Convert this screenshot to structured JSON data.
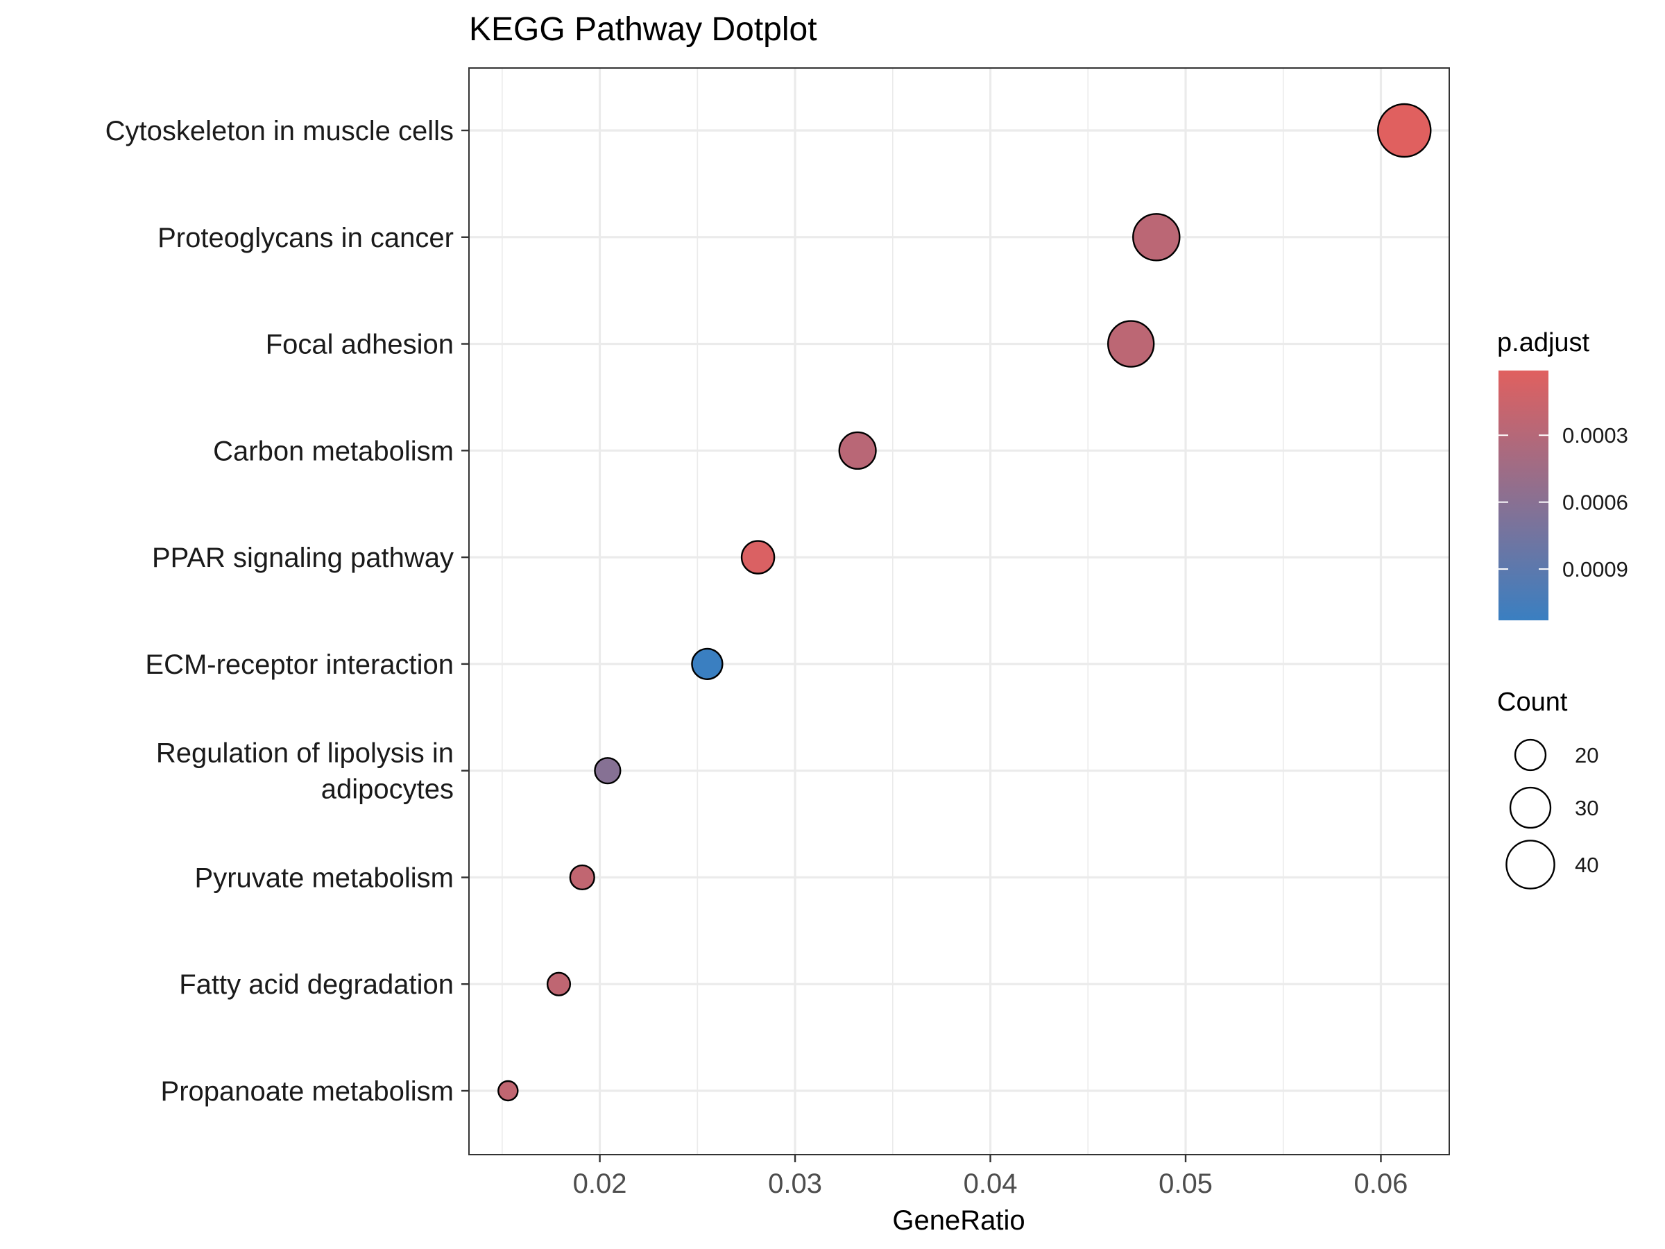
{
  "chart_data": {
    "type": "scatter",
    "title": "KEGG Pathway Dotplot",
    "xlabel": "GeneRatio",
    "ylabel": "",
    "xlim": [
      0.0133,
      0.0635
    ],
    "x_ticks": [
      0.02,
      0.03,
      0.04,
      0.05,
      0.06
    ],
    "x_tick_labels": [
      "0.02",
      "0.03",
      "0.04",
      "0.05",
      "0.06"
    ],
    "grid": true,
    "categories": [
      "Cytoskeleton in muscle cells",
      "Proteoglycans in cancer",
      "Focal adhesion",
      "Carbon metabolism",
      "PPAR signaling pathway",
      "ECM-receptor interaction",
      "Regulation of lipolysis in adipocytes",
      "Pyruvate metabolism",
      "Fatty acid degradation",
      "Propanoate metabolism"
    ],
    "category_lines": [
      [
        "Cytoskeleton in muscle cells"
      ],
      [
        "Proteoglycans in cancer"
      ],
      [
        "Focal adhesion"
      ],
      [
        "Carbon metabolism"
      ],
      [
        "PPAR signaling pathway"
      ],
      [
        "ECM-receptor interaction"
      ],
      [
        "Regulation of lipolysis in",
        "adipocytes"
      ],
      [
        "Pyruvate metabolism"
      ],
      [
        "Fatty acid degradation"
      ],
      [
        "Propanoate metabolism"
      ]
    ],
    "points": [
      {
        "term": "Cytoskeleton in muscle cells",
        "gene_ratio": 0.0612,
        "count": 47,
        "p_adjust": 1e-05
      },
      {
        "term": "Proteoglycans in cancer",
        "gene_ratio": 0.0485,
        "count": 38,
        "p_adjust": 0.00026
      },
      {
        "term": "Focal adhesion",
        "gene_ratio": 0.0472,
        "count": 37,
        "p_adjust": 0.00025
      },
      {
        "term": "Carbon metabolism",
        "gene_ratio": 0.0332,
        "count": 26,
        "p_adjust": 0.00027
      },
      {
        "term": "PPAR signaling pathway",
        "gene_ratio": 0.0281,
        "count": 22,
        "p_adjust": 5e-05
      },
      {
        "term": "ECM-receptor interaction",
        "gene_ratio": 0.0255,
        "count": 20,
        "p_adjust": 0.00113
      },
      {
        "term": "Regulation of lipolysis in adipocytes",
        "gene_ratio": 0.0204,
        "count": 16,
        "p_adjust": 0.00062
      },
      {
        "term": "Pyruvate metabolism",
        "gene_ratio": 0.0191,
        "count": 15,
        "p_adjust": 0.00022
      },
      {
        "term": "Fatty acid degradation",
        "gene_ratio": 0.0179,
        "count": 14,
        "p_adjust": 0.00023
      },
      {
        "term": "Propanoate metabolism",
        "gene_ratio": 0.0153,
        "count": 12,
        "p_adjust": 0.00022
      }
    ],
    "color_legend": {
      "title": "p.adjust",
      "low_color": "#e0605f",
      "high_color": "#3a7fc1",
      "range": [
        1e-05,
        0.00113
      ],
      "ticks": [
        0.0003,
        0.0006,
        0.0009
      ],
      "tick_labels": [
        "0.0003",
        "0.0006",
        "0.0009"
      ]
    },
    "size_legend": {
      "title": "Count",
      "values": [
        20,
        30,
        40
      ],
      "labels": [
        "20",
        "30",
        "40"
      ],
      "range": [
        12,
        47
      ]
    },
    "legend_position": "right"
  }
}
